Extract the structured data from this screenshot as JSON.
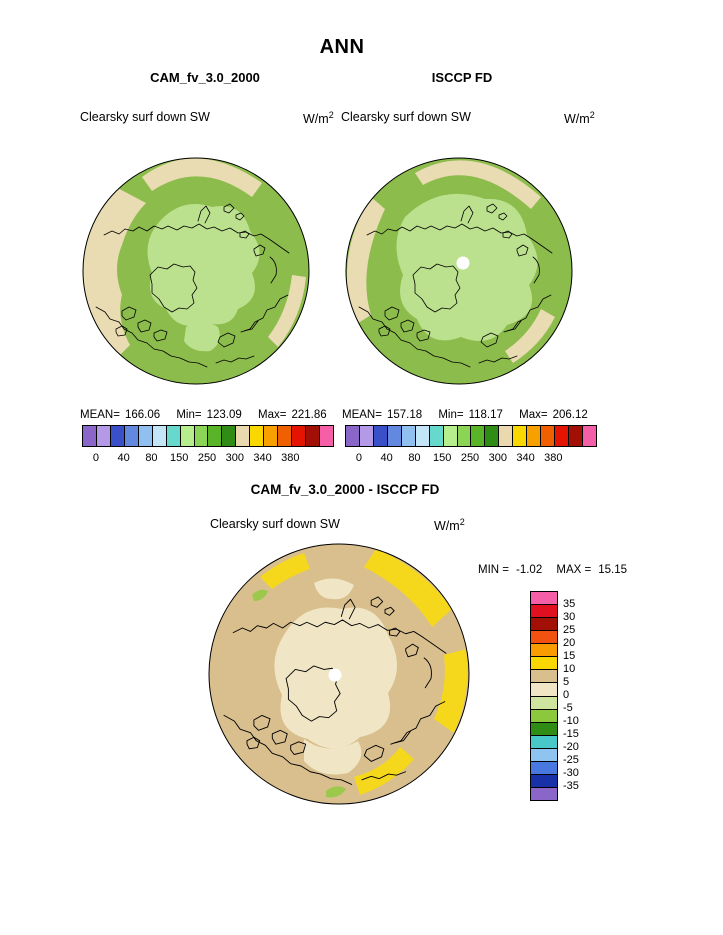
{
  "header": {
    "season": "ANN"
  },
  "panels": {
    "cam": {
      "title": "CAM_fv_3.0_2000",
      "field": "Clearsky surf down SW",
      "units_base": "W/m",
      "units_exp": "2",
      "mean_label": "MEAN=",
      "mean": "166.06",
      "min_label": "Min=",
      "min": "123.09",
      "max_label": "Max=",
      "max": "221.86"
    },
    "isccp": {
      "title": "ISCCP FD",
      "field": "Clearsky surf down SW",
      "units_base": "W/m",
      "units_exp": "2",
      "mean_label": "MEAN=",
      "mean": "157.18",
      "min_label": "Min=",
      "min": "118.17",
      "max_label": "Max=",
      "max": "206.12"
    },
    "diff": {
      "title": "CAM_fv_3.0_2000 - ISCCP FD",
      "field": "Clearsky surf down SW",
      "units_base": "W/m",
      "units_exp": "2",
      "min_label": "MIN =",
      "min": "-1.02",
      "max_label": "MAX =",
      "max": "15.15"
    }
  },
  "colorbars": {
    "absolute_colors": [
      "#8a66c8",
      "#b49ae6",
      "#3a50c8",
      "#6388e0",
      "#8fc0f0",
      "#c2e6f8",
      "#66d8cc",
      "#b6ee8e",
      "#8cd455",
      "#5ab428",
      "#2f8c14",
      "#ead9ae",
      "#f8d800",
      "#f8a000",
      "#f06000",
      "#e41400",
      "#a10f05",
      "#f45fa8"
    ],
    "absolute_ticks": [
      "0",
      "40",
      "80",
      "150",
      "250",
      "300",
      "340",
      "380"
    ],
    "diff_colors": [
      "#f45fa8",
      "#e01020",
      "#a10f05",
      "#f25210",
      "#f89c00",
      "#f8d800",
      "#d9bf8e",
      "#f0e6c5",
      "#cfe49e",
      "#8cc83c",
      "#2f8c14",
      "#48c8c8",
      "#90c4f0",
      "#4878e0",
      "#1830a8",
      "#8a66c8"
    ],
    "diff_labels": [
      "35",
      "30",
      "25",
      "20",
      "15",
      "10",
      "5",
      "0",
      "-5",
      "-10",
      "-15",
      "-20",
      "-25",
      "-30",
      "-35"
    ]
  },
  "colors": {
    "map_green": "#8cbc4c",
    "map_light_green": "#bce18e",
    "map_tan": "#e9dbb2",
    "diff_tan": "#d9bf8e",
    "diff_cream": "#f0e6c5",
    "diff_yellow": "#f5d81c",
    "diff_green": "#9cc84c",
    "coast": "#000000"
  },
  "chart_data": [
    {
      "type": "heatmap",
      "projection": "north-polar-stereographic",
      "season": "ANN",
      "title": "CAM_fv_3.0_2000",
      "field": "Clearsky surf down SW",
      "units": "W/m2",
      "stats": {
        "mean": 166.06,
        "min": 123.09,
        "max": 221.86
      },
      "colorbar_ticks": [
        0,
        40,
        80,
        150,
        250,
        300,
        340,
        380
      ],
      "legend_position": "bottom"
    },
    {
      "type": "heatmap",
      "projection": "north-polar-stereographic",
      "season": "ANN",
      "title": "ISCCP FD",
      "field": "Clearsky surf down SW",
      "units": "W/m2",
      "stats": {
        "mean": 157.18,
        "min": 118.17,
        "max": 206.12
      },
      "colorbar_ticks": [
        0,
        40,
        80,
        150,
        250,
        300,
        340,
        380
      ],
      "legend_position": "bottom"
    },
    {
      "type": "heatmap",
      "projection": "north-polar-stereographic",
      "season": "ANN",
      "title": "CAM_fv_3.0_2000 - ISCCP FD",
      "field": "Clearsky surf down SW",
      "units": "W/m2",
      "stats": {
        "min": -1.02,
        "max": 15.15
      },
      "colorbar_ticks": [
        35,
        30,
        25,
        20,
        15,
        10,
        5,
        0,
        -5,
        -10,
        -15,
        -20,
        -25,
        -30,
        -35
      ],
      "legend_position": "right"
    }
  ]
}
